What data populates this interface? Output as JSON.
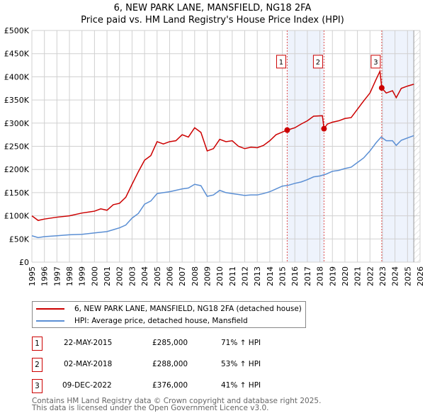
{
  "chart_data": {
    "type": "line",
    "title": "6, NEW PARK LANE, MANSFIELD, NG18 2FA",
    "subtitle": "Price paid vs. HM Land Registry's House Price Index (HPI)",
    "xlim": [
      1995,
      2026
    ],
    "ylim": [
      0,
      500000
    ],
    "xticks": [
      "1995",
      "1996",
      "1997",
      "1998",
      "1999",
      "2000",
      "2001",
      "2002",
      "2003",
      "2004",
      "2005",
      "2006",
      "2007",
      "2008",
      "2009",
      "2010",
      "2011",
      "2012",
      "2013",
      "2014",
      "2015",
      "2016",
      "2017",
      "2018",
      "2019",
      "2020",
      "2021",
      "2022",
      "2023",
      "2024",
      "2025",
      "2026"
    ],
    "yticks": [
      {
        "v": 0,
        "label": "£0"
      },
      {
        "v": 50000,
        "label": "£50K"
      },
      {
        "v": 100000,
        "label": "£100K"
      },
      {
        "v": 150000,
        "label": "£150K"
      },
      {
        "v": 200000,
        "label": "£200K"
      },
      {
        "v": 250000,
        "label": "£250K"
      },
      {
        "v": 300000,
        "label": "£300K"
      },
      {
        "v": 350000,
        "label": "£350K"
      },
      {
        "v": 400000,
        "label": "£400K"
      },
      {
        "v": 450000,
        "label": "£450K"
      },
      {
        "v": 500000,
        "label": "£500K"
      }
    ],
    "grid": true,
    "series": [
      {
        "name": "6, NEW PARK LANE, MANSFIELD, NG18 2FA (detached house)",
        "color": "#cc0000",
        "x": [
          1995,
          1995.5,
          1996,
          1997,
          1998,
          1999,
          2000,
          2000.5,
          2001,
          2001.5,
          2002,
          2002.5,
          2003,
          2003.5,
          2004,
          2004.5,
          2005,
          2005.5,
          2006,
          2006.5,
          2007,
          2007.5,
          2008,
          2008.5,
          2009,
          2009.5,
          2010,
          2010.5,
          2011,
          2011.5,
          2012,
          2012.5,
          2013,
          2013.5,
          2014,
          2014.5,
          2015.39,
          2016,
          2016.5,
          2017,
          2017.5,
          2018.2,
          2018.33,
          2018.6,
          2019,
          2019.5,
          2020,
          2020.5,
          2021,
          2021.5,
          2022,
          2022.5,
          2022.8,
          2022.94,
          2023.3,
          2023.8,
          2024.1,
          2024.5,
          2025,
          2025.5
        ],
        "y": [
          100000,
          90000,
          93000,
          97000,
          100000,
          106000,
          110000,
          115000,
          112000,
          124000,
          127000,
          140000,
          168000,
          195000,
          220000,
          230000,
          260000,
          255000,
          260000,
          262000,
          275000,
          270000,
          290000,
          280000,
          240000,
          245000,
          265000,
          260000,
          262000,
          250000,
          245000,
          248000,
          247000,
          252000,
          262000,
          275000,
          285000,
          290000,
          298000,
          305000,
          315000,
          316000,
          288000,
          298000,
          302000,
          305000,
          310000,
          312000,
          330000,
          348000,
          365000,
          395000,
          412000,
          376000,
          365000,
          370000,
          355000,
          375000,
          380000,
          384000
        ]
      },
      {
        "name": "HPI: Average price, detached house, Mansfield",
        "color": "#5b8fd4",
        "x": [
          1995,
          1995.5,
          1996,
          1997,
          1998,
          1999,
          2000,
          2001,
          2001.5,
          2002,
          2002.5,
          2003,
          2003.5,
          2004,
          2004.5,
          2005,
          2005.5,
          2006,
          2006.5,
          2007,
          2007.5,
          2008,
          2008.5,
          2009,
          2009.5,
          2010,
          2010.5,
          2011,
          2011.5,
          2012,
          2012.5,
          2013,
          2013.5,
          2014,
          2014.5,
          2015,
          2015.5,
          2016,
          2016.5,
          2017,
          2017.5,
          2018,
          2018.5,
          2019,
          2019.5,
          2020,
          2020.5,
          2021,
          2021.5,
          2022,
          2022.5,
          2022.9,
          2023.3,
          2023.8,
          2024.1,
          2024.5,
          2025,
          2025.5
        ],
        "y": [
          57000,
          53000,
          55000,
          57000,
          59000,
          60000,
          63000,
          66000,
          70000,
          74000,
          80000,
          95000,
          105000,
          125000,
          132000,
          148000,
          150000,
          152000,
          155000,
          158000,
          160000,
          168000,
          165000,
          142000,
          145000,
          155000,
          150000,
          148000,
          146000,
          144000,
          145000,
          145000,
          148000,
          152000,
          158000,
          164000,
          166000,
          170000,
          173000,
          178000,
          184000,
          186000,
          190000,
          196000,
          198000,
          202000,
          205000,
          215000,
          225000,
          240000,
          258000,
          270000,
          262000,
          262000,
          252000,
          263000,
          268000,
          273000
        ]
      }
    ],
    "sales": [
      {
        "num": "1",
        "x": 2015.39,
        "price": 285000,
        "date": "22-MAY-2015",
        "price_label": "£285,000",
        "hpi": "71% ↑ HPI"
      },
      {
        "num": "2",
        "x": 2018.33,
        "price": 288000,
        "date": "02-MAY-2018",
        "price_label": "£288,000",
        "hpi": "53% ↑ HPI"
      },
      {
        "num": "3",
        "x": 2022.94,
        "price": 376000,
        "date": "09-DEC-2022",
        "price_label": "£376,000",
        "hpi": "41% ↑ HPI"
      }
    ],
    "forecast_start": 2025.5,
    "legend": "below"
  },
  "footer": {
    "line1": "Contains HM Land Registry data © Crown copyright and database right 2025.",
    "line2": "This data is licensed under the Open Government Licence v3.0."
  }
}
